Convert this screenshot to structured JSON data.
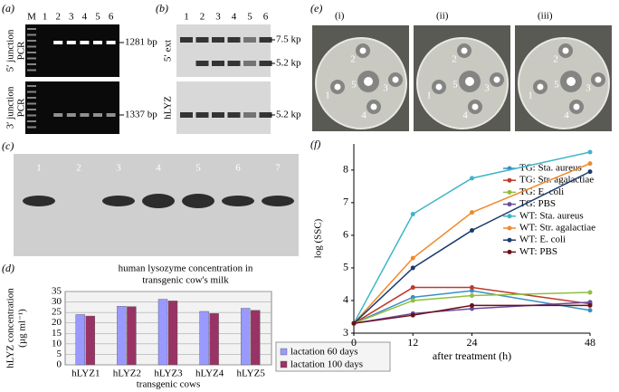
{
  "panels": {
    "a": {
      "label": "(a)",
      "lanes": [
        "M",
        "1",
        "2",
        "3",
        "4",
        "5",
        "6"
      ],
      "rows": [
        {
          "title": [
            "5′ junction",
            "PCR"
          ],
          "size": "1281 bp"
        },
        {
          "title": [
            "3′ junction",
            "PCR"
          ],
          "size": "1337 bp"
        }
      ]
    },
    "b": {
      "label": "(b)",
      "lanes": [
        "1",
        "2",
        "3",
        "4",
        "5",
        "6"
      ],
      "rows": [
        {
          "title": [
            "5′ ext"
          ],
          "sizes": [
            "7.5 kp",
            "5.2 kp"
          ]
        },
        {
          "title": [
            "hLYZ"
          ],
          "sizes": [
            "5.2 kp"
          ]
        }
      ]
    },
    "c": {
      "label": "(c)",
      "lanes": [
        "1",
        "2",
        "3",
        "4",
        "5",
        "6",
        "7"
      ]
    },
    "e": {
      "label": "(e)",
      "plates": [
        "(i)",
        "(ii)",
        "(iii)"
      ],
      "wells": [
        "1",
        "2",
        "3",
        "4",
        "5"
      ]
    }
  },
  "chart_data": [
    {
      "type": "bar",
      "label": "(d)",
      "title": [
        "human lysozyme concentration in",
        "transgenic cow's milk"
      ],
      "categories": [
        "hLYZ1",
        "hLYZ2",
        "hLYZ3",
        "hLYZ4",
        "hLYZ5"
      ],
      "series": [
        {
          "name": "lactation 60 days",
          "color": "#9999ff",
          "values": [
            24,
            28,
            31.3,
            25.5,
            27
          ]
        },
        {
          "name": "lactation 100 days",
          "color": "#993366",
          "values": [
            23.3,
            27.8,
            30.5,
            24.5,
            26
          ]
        }
      ],
      "ylim": [
        0,
        35
      ],
      "yticks": [
        0,
        5,
        10,
        15,
        20,
        25,
        30,
        35
      ],
      "grid": true,
      "xlabel": "transgenic cows",
      "ylabel": [
        "hLYZ concentration",
        "(µg ml⁻¹)"
      ]
    },
    {
      "type": "line",
      "label": "(f)",
      "x": [
        0,
        12,
        24,
        48
      ],
      "series": [
        {
          "name": "TG: Sta. aureus",
          "color": "#3a8fc4",
          "values": [
            3.3,
            4.1,
            4.3,
            3.7
          ]
        },
        {
          "name": "TG: Str. agalactiae",
          "color": "#c0392b",
          "values": [
            3.3,
            4.4,
            4.4,
            3.9
          ]
        },
        {
          "name": "TG: E. coli",
          "color": "#8fbf3f",
          "values": [
            3.3,
            4.0,
            4.15,
            4.25
          ]
        },
        {
          "name": "TG: PBS",
          "color": "#6a4c9c",
          "values": [
            3.3,
            3.6,
            3.75,
            3.95
          ]
        },
        {
          "name": "WT: Sta. aureus",
          "color": "#3cb6c8",
          "values": [
            3.3,
            6.65,
            7.75,
            8.55
          ]
        },
        {
          "name": "WT: Str. agalactiae",
          "color": "#f0892c",
          "values": [
            3.3,
            5.3,
            6.7,
            8.2
          ]
        },
        {
          "name": "WT: E. coli",
          "color": "#1c3a6e",
          "values": [
            3.3,
            5.0,
            6.15,
            7.95
          ]
        },
        {
          "name": "WT: PBS",
          "color": "#6b0f1a",
          "values": [
            3.3,
            3.55,
            3.85,
            3.85
          ]
        }
      ],
      "xlim": [
        0,
        48
      ],
      "xticks": [
        0,
        12,
        24,
        48
      ],
      "ylim": [
        3,
        8.8
      ],
      "yticks": [
        3,
        4,
        5,
        6,
        7,
        8
      ],
      "xlabel": "after treatment (h)",
      "ylabel": "log (SSC)"
    }
  ]
}
